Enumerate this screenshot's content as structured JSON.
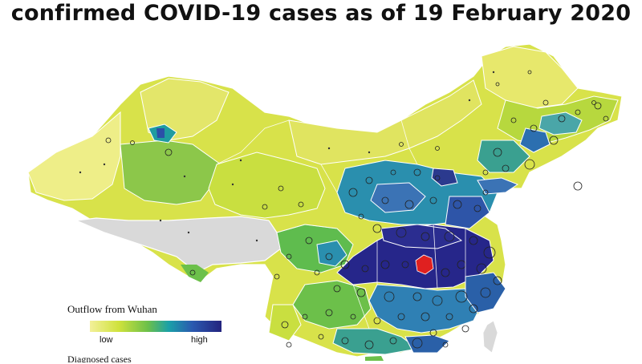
{
  "title": "confirmed COVID-19 cases as of 19 February 2020",
  "legend": {
    "title": "Outflow from Wuhan",
    "low_label": "low",
    "high_label": "high",
    "sub_label": "Diagnosed cases",
    "colors": [
      "#f3f09a",
      "#cfe23c",
      "#6cc04a",
      "#1aa0a8",
      "#2b59b0",
      "#23237e"
    ]
  },
  "map": {
    "country": "China",
    "no_data_color": "#d9d9d9",
    "highlight_color": "#e02020",
    "case_marker": "circle"
  }
}
